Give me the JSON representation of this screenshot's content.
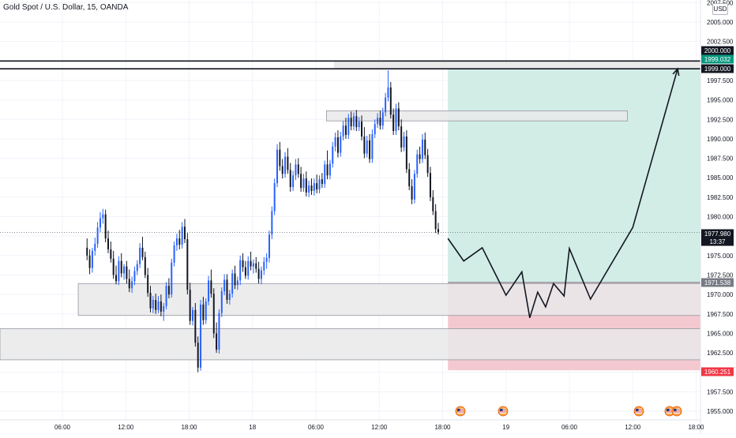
{
  "header": {
    "symbol_title": "Gold Spot / U.S. Dollar, 15, OANDA",
    "currency_button": "USD"
  },
  "colors": {
    "up": "#2962ff",
    "down": "#131722",
    "grid": "#f0f3fa",
    "profit_zone": "#d1ede6",
    "loss_zone": "#f3c9cf",
    "zone_box": "#e9e9ea",
    "accent_green": "#089981",
    "accent_red": "#f23645"
  },
  "chart_data": {
    "type": "candlestick",
    "title": "Gold Spot / U.S. Dollar, 15, OANDA",
    "ylim": [
      1953.75,
      2007.5
    ],
    "y_ticks": [
      "1955.000",
      "1957.500",
      "1960.000",
      "1962.500",
      "1965.000",
      "1967.500",
      "1970.000",
      "1972.500",
      "1975.000",
      "1977.500",
      "1980.000",
      "1982.500",
      "1985.000",
      "1987.500",
      "1990.000",
      "1992.500",
      "1995.000",
      "1997.500",
      "2002.500",
      "2005.000",
      "2007.500"
    ],
    "x_ticks": [
      "06:00",
      "12:00",
      "18:00",
      "18",
      "06:00",
      "12:00",
      "18:00",
      "19",
      "06:00",
      "12:00",
      "18:00"
    ],
    "price_labels": [
      {
        "text": "2000.000",
        "value": 2000.0,
        "role": "level"
      },
      {
        "text": "1999.032",
        "value": 1999.032,
        "role": "target"
      },
      {
        "text": "1999.000",
        "value": 1999.0,
        "role": "level"
      },
      {
        "text": "1977.980",
        "value": 1977.98,
        "role": "current"
      },
      {
        "text": "13:37",
        "value": 1976.8,
        "role": "countdown"
      },
      {
        "text": "1971.538",
        "value": 1971.538,
        "role": "entry"
      },
      {
        "text": "1960.251",
        "value": 1960.251,
        "role": "stop"
      }
    ],
    "horizontal_lines": [
      2000.0,
      1999.0
    ],
    "zones": [
      {
        "name": "supply",
        "x0": "18 07:00",
        "x1": "19 11:30",
        "y0": 1992.3,
        "y1": 1993.6
      },
      {
        "name": "demand-1",
        "x0": "17 07:30",
        "x1": "end",
        "y0": 1967.3,
        "y1": 1971.4
      },
      {
        "name": "demand-2",
        "x0": "start",
        "x1": "end",
        "y0": 1961.6,
        "y1": 1965.6
      }
    ],
    "position": {
      "entry": 1971.538,
      "target": 1999.032,
      "stop": 1960.251,
      "start": "18 18:30",
      "end": "end"
    },
    "projection_path": [
      [
        "18 18:30",
        1977.2
      ],
      [
        "18 20:00",
        1974.3
      ],
      [
        "18 21:45",
        1976.0
      ],
      [
        "19 00:00",
        1969.9
      ],
      [
        "19 01:30",
        1972.9
      ],
      [
        "19 02:15",
        1967.0
      ],
      [
        "19 03:00",
        1970.3
      ],
      [
        "19 03:45",
        1968.4
      ],
      [
        "19 04:30",
        1971.4
      ],
      [
        "19 05:30",
        1969.8
      ],
      [
        "19 06:00",
        1975.9
      ],
      [
        "19 08:00",
        1969.4
      ],
      [
        "19 12:00",
        1978.6
      ],
      [
        "19 16:15",
        1999.0
      ]
    ],
    "current_price": 1977.98,
    "candles": {
      "interval": "15m",
      "note": "approximate OHLC read off the chart; one string per candle",
      "series": "Gold Spot / U.S. Dollar",
      "ohlc": [
        "1976.0,1977.2,1974.4,1975.0",
        "1975.0,1975.8,1972.6,1973.4",
        "1973.4,1976.0,1972.8,1975.6",
        "1975.6,1977.3,1975.0,1976.5",
        "1976.5,1979.3,1976.0,1978.6",
        "1978.6,1980.6,1978.0,1979.8",
        "1979.8,1981.0,1979.1,1980.3",
        "1980.3,1980.9,1976.7,1977.2",
        "1977.2,1978.2,1975.3,1975.8",
        "1975.8,1976.8,1974.1,1974.6",
        "1974.6,1975.6,1972.0,1972.5",
        "1972.5,1973.7,1971.3,1971.7",
        "1971.7,1974.9,1971.2,1974.3",
        "1974.3,1975.3,1972.2,1972.7",
        "1972.7,1973.9,1971.9,1973.6",
        "1973.6,1974.3,1971.4,1972.0",
        "1972.0,1973.2,1970.3,1970.8",
        "1970.8,1972.3,1970.2,1971.7",
        "1971.7,1973.6,1971.2,1973.0",
        "1973.0,1974.4,1972.5,1973.9",
        "1973.9,1976.6,1973.4,1976.0",
        "1976.0,1977.4,1974.4,1974.8",
        "1974.8,1975.5,1972.1,1972.5",
        "1972.5,1973.4,1969.7,1970.2",
        "1970.2,1971.1,1967.7,1968.2",
        "1968.2,1969.8,1967.6,1969.3",
        "1969.3,1970.1,1967.5,1968.0",
        "1968.0,1969.8,1967.6,1969.1",
        "1969.1,1970.0,1967.2,1967.8",
        "1967.8,1968.9,1966.6,1968.5",
        "1968.5,1971.6,1968.1,1971.1",
        "1971.1,1972.1,1969.5,1970.0",
        "1970.0,1974.6,1969.6,1974.1",
        "1974.1,1976.8,1973.6,1976.3",
        "1976.3,1977.8,1975.6,1977.2",
        "1977.2,1978.3,1975.8,1976.4",
        "1976.4,1979.3,1975.9,1978.7",
        "1978.7,1979.7,1976.6,1977.1",
        "1977.1,1977.9,1970.0,1970.6",
        "1970.6,1971.5,1966.1,1966.6",
        "1966.6,1968.4,1966.0,1968.0",
        "1968.0,1968.9,1963.3,1963.8",
        "1963.8,1964.6,1960.0,1960.6",
        "1960.6,1969.3,1960.2,1968.7",
        "1968.7,1969.7,1966.1,1966.7",
        "1966.7,1969.5,1966.2,1969.1",
        "1969.1,1972.4,1968.6,1971.8",
        "1971.8,1973.2,1969.6,1970.1",
        "1970.1,1970.8,1964.4,1965.0",
        "1965.0,1966.4,1962.5,1962.9",
        "1962.9,1968.1,1962.4,1967.6",
        "1967.6,1970.9,1967.1,1970.4",
        "1970.4,1972.6,1969.9,1971.9",
        "1971.9,1972.6,1968.8,1969.3",
        "1969.3,1970.6,1968.7,1970.1",
        "1970.1,1973.2,1969.6,1972.7",
        "1972.7,1973.7,1970.7,1971.2",
        "1971.2,1972.3,1970.6,1971.8",
        "1971.8,1975.0,1971.2,1974.4",
        "1974.4,1975.3,1972.9,1973.5",
        "1973.5,1974.3,1972.0,1972.4",
        "1972.4,1974.9,1971.9,1974.3",
        "1974.3,1975.5,1973.1,1973.6",
        "1973.6,1974.5,1972.7,1974.0",
        "1974.0,1974.8,1972.8,1973.3",
        "1973.3,1974.2,1971.4,1972.0",
        "1972.0,1973.6,1971.3,1973.1",
        "1973.1,1974.8,1972.5,1974.2",
        "1974.2,1975.3,1973.3,1974.7",
        "1974.7,1978.2,1974.1,1977.7",
        "1977.7,1981.3,1977.1,1980.7",
        "1980.7,1984.9,1980.2,1984.3",
        "1984.3,1989.3,1983.8,1988.6",
        "1988.6,1989.6,1985.9,1986.5",
        "1986.5,1987.4,1984.9,1985.5",
        "1985.5,1988.3,1985.0,1987.7",
        "1987.7,1988.8,1985.5,1986.0",
        "1986.0,1986.9,1983.2,1983.8",
        "1983.8,1985.9,1983.3,1985.3",
        "1985.3,1987.4,1984.7,1986.7",
        "1986.7,1987.5,1985.0,1985.5",
        "1985.5,1986.4,1983.2,1983.7",
        "1983.7,1985.5,1983.2,1984.9",
        "1984.9,1985.8,1982.6,1983.1",
        "1983.1,1984.6,1982.5,1984.0",
        "1984.0,1984.9,1982.8,1983.3",
        "1983.3,1984.9,1982.7,1984.3",
        "1984.3,1985.4,1983.0,1983.5",
        "1983.5,1985.3,1983.0,1984.8",
        "1984.8,1985.6,1983.7,1984.2",
        "1984.2,1987.2,1983.7,1986.7",
        "1986.7,1988.5,1984.8,1985.3",
        "1985.3,1987.3,1984.8,1986.8",
        "1986.8,1989.6,1986.3,1989.0",
        "1989.0,1990.8,1988.4,1990.2",
        "1990.2,1991.1,1987.6,1988.2",
        "1988.2,1990.9,1987.7,1990.3",
        "1990.3,1992.3,1989.8,1991.7",
        "1991.7,1992.7,1990.0,1990.5",
        "1990.5,1993.2,1990.0,1992.7",
        "1992.7,1993.5,1991.1,1991.6",
        "1991.6,1993.4,1991.1,1992.9",
        "1992.9,1993.7,1991.0,1991.5",
        "1991.5,1992.8,1991.0,1992.2",
        "1992.2,1993.0,1989.8,1990.3",
        "1990.3,1991.5,1987.5,1988.1",
        "1988.1,1990.4,1987.6,1989.8",
        "1989.8,1990.6,1986.9,1987.4",
        "1987.4,1991.2,1986.9,1990.6",
        "1990.6,1992.5,1990.1,1991.9",
        "1991.9,1993.3,1991.4,1992.7",
        "1992.7,1993.6,1991.2,1991.7",
        "1991.7,1994.0,1991.2,1993.4",
        "1993.4,1995.9,1992.9,1995.3",
        "1995.3,1998.8,1994.8,1996.6",
        "1996.6,1997.3,1992.6,1993.1",
        "1993.1,1993.9,1990.5,1991.0",
        "1991.0,1994.5,1990.5,1993.9",
        "1993.9,1994.7,1991.1,1991.6",
        "1991.6,1992.5,1988.3,1988.9",
        "1988.9,1990.9,1988.4,1990.3",
        "1990.3,1991.1,1985.6,1986.1",
        "1986.1,1986.9,1983.4,1983.9",
        "1983.9,1984.8,1981.6,1982.2",
        "1982.2,1986.0,1981.7,1985.5",
        "1985.5,1988.6,1985.0,1988.0",
        "1988.0,1989.0,1986.8,1987.4",
        "1987.4,1990.6,1986.9,1989.9",
        "1989.9,1990.8,1987.4,1987.9",
        "1987.9,1988.7,1985.1,1985.6",
        "1985.6,1986.4,1982.0,1982.5",
        "1982.5,1983.4,1980.2,1980.7",
        "1980.7,1981.6,1977.9,1978.4",
        "1978.4,1979.2,1977.7,1978.0"
      ]
    }
  }
}
